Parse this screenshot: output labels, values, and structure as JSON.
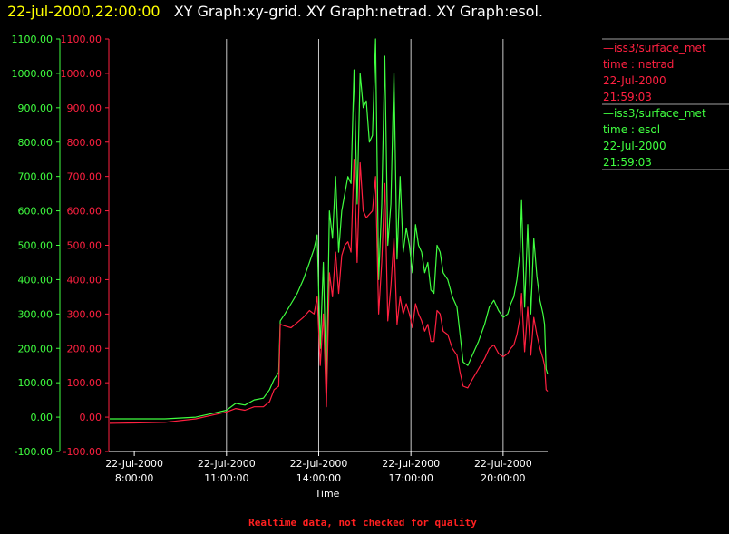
{
  "header": {
    "timestamp": "22-jul-2000,22:00:00",
    "graphs_text": "XY Graph:xy-grid.  XY Graph:netrad.  XY Graph:esol."
  },
  "footer": {
    "note": "Realtime data, not checked for quality"
  },
  "legend": [
    {
      "lines": [
        "—iss3/surface_met",
        "time : netrad",
        "22-Jul-2000",
        "21:59:03"
      ],
      "color": "#ff2040"
    },
    {
      "lines": [
        "—iss3/surface_met",
        "time : esol",
        "22-Jul-2000",
        "21:59:03"
      ],
      "color": "#40ff40"
    }
  ],
  "chart_data": {
    "type": "line",
    "title": "",
    "xlabel": "Time",
    "ylabel": "",
    "x_unit": "hours of day, 22-Jul-2000",
    "xlim": [
      7.2,
      21.45
    ],
    "ylim": [
      -100,
      1100
    ],
    "y_ticks": [
      "-100.00",
      "0.00",
      "100.00",
      "200.00",
      "300.00",
      "400.00",
      "500.00",
      "600.00",
      "700.00",
      "800.00",
      "900.00",
      "1000.00",
      "1100.00"
    ],
    "x_ticks": [
      {
        "x": 8,
        "date": "22-Jul-2000",
        "time": "8:00:00"
      },
      {
        "x": 11,
        "date": "22-Jul-2000",
        "time": "11:00:00"
      },
      {
        "x": 14,
        "date": "22-Jul-2000",
        "time": "14:00:00"
      },
      {
        "x": 17,
        "date": "22-Jul-2000",
        "time": "17:00:00"
      },
      {
        "x": 20,
        "date": "22-Jul-2000",
        "time": "20:00:00"
      }
    ],
    "vertical_grid": [
      11,
      14,
      17,
      20
    ],
    "series": [
      {
        "name": "esol",
        "color": "#40ff40",
        "points": [
          [
            7.2,
            -5
          ],
          [
            8.0,
            -5
          ],
          [
            9.0,
            -5
          ],
          [
            10.0,
            0
          ],
          [
            10.5,
            10
          ],
          [
            11.0,
            20
          ],
          [
            11.3,
            40
          ],
          [
            11.6,
            35
          ],
          [
            11.9,
            50
          ],
          [
            12.2,
            55
          ],
          [
            12.4,
            80
          ],
          [
            12.55,
            110
          ],
          [
            12.7,
            130
          ],
          [
            12.75,
            280
          ],
          [
            12.9,
            300
          ],
          [
            13.1,
            330
          ],
          [
            13.3,
            360
          ],
          [
            13.5,
            400
          ],
          [
            13.7,
            450
          ],
          [
            13.85,
            490
          ],
          [
            13.95,
            530
          ],
          [
            14.05,
            200
          ],
          [
            14.15,
            450
          ],
          [
            14.25,
            70
          ],
          [
            14.35,
            600
          ],
          [
            14.45,
            520
          ],
          [
            14.55,
            700
          ],
          [
            14.65,
            480
          ],
          [
            14.75,
            600
          ],
          [
            14.85,
            650
          ],
          [
            14.95,
            700
          ],
          [
            15.05,
            680
          ],
          [
            15.15,
            1010
          ],
          [
            15.25,
            620
          ],
          [
            15.35,
            1000
          ],
          [
            15.45,
            900
          ],
          [
            15.55,
            920
          ],
          [
            15.65,
            800
          ],
          [
            15.75,
            820
          ],
          [
            15.85,
            1100
          ],
          [
            15.95,
            400
          ],
          [
            16.05,
            620
          ],
          [
            16.15,
            1050
          ],
          [
            16.25,
            500
          ],
          [
            16.35,
            620
          ],
          [
            16.45,
            1000
          ],
          [
            16.55,
            460
          ],
          [
            16.65,
            700
          ],
          [
            16.75,
            480
          ],
          [
            16.85,
            550
          ],
          [
            16.95,
            500
          ],
          [
            17.05,
            420
          ],
          [
            17.15,
            560
          ],
          [
            17.25,
            500
          ],
          [
            17.35,
            480
          ],
          [
            17.45,
            420
          ],
          [
            17.55,
            450
          ],
          [
            17.65,
            370
          ],
          [
            17.75,
            360
          ],
          [
            17.85,
            500
          ],
          [
            17.95,
            480
          ],
          [
            18.05,
            420
          ],
          [
            18.2,
            400
          ],
          [
            18.35,
            350
          ],
          [
            18.5,
            320
          ],
          [
            18.6,
            240
          ],
          [
            18.7,
            160
          ],
          [
            18.85,
            150
          ],
          [
            19.0,
            180
          ],
          [
            19.2,
            220
          ],
          [
            19.4,
            270
          ],
          [
            19.55,
            320
          ],
          [
            19.7,
            340
          ],
          [
            19.85,
            310
          ],
          [
            20.0,
            290
          ],
          [
            20.15,
            300
          ],
          [
            20.25,
            330
          ],
          [
            20.35,
            350
          ],
          [
            20.45,
            400
          ],
          [
            20.55,
            480
          ],
          [
            20.6,
            630
          ],
          [
            20.7,
            320
          ],
          [
            20.8,
            560
          ],
          [
            20.9,
            300
          ],
          [
            21.0,
            520
          ],
          [
            21.1,
            410
          ],
          [
            21.2,
            340
          ],
          [
            21.3,
            300
          ],
          [
            21.35,
            270
          ],
          [
            21.4,
            140
          ],
          [
            21.45,
            125
          ]
        ]
      },
      {
        "name": "netrad",
        "color": "#ff2040",
        "points": [
          [
            7.2,
            -18
          ],
          [
            8.0,
            -17
          ],
          [
            9.0,
            -15
          ],
          [
            10.0,
            -5
          ],
          [
            10.5,
            5
          ],
          [
            11.0,
            15
          ],
          [
            11.3,
            25
          ],
          [
            11.6,
            20
          ],
          [
            11.9,
            30
          ],
          [
            12.2,
            30
          ],
          [
            12.4,
            45
          ],
          [
            12.55,
            80
          ],
          [
            12.7,
            90
          ],
          [
            12.75,
            270
          ],
          [
            12.9,
            265
          ],
          [
            13.1,
            260
          ],
          [
            13.3,
            275
          ],
          [
            13.5,
            290
          ],
          [
            13.7,
            310
          ],
          [
            13.85,
            300
          ],
          [
            13.95,
            350
          ],
          [
            14.05,
            150
          ],
          [
            14.15,
            300
          ],
          [
            14.25,
            30
          ],
          [
            14.35,
            420
          ],
          [
            14.45,
            350
          ],
          [
            14.55,
            480
          ],
          [
            14.65,
            360
          ],
          [
            14.75,
            470
          ],
          [
            14.85,
            500
          ],
          [
            14.95,
            510
          ],
          [
            15.05,
            480
          ],
          [
            15.15,
            750
          ],
          [
            15.25,
            450
          ],
          [
            15.35,
            740
          ],
          [
            15.45,
            600
          ],
          [
            15.55,
            580
          ],
          [
            15.65,
            590
          ],
          [
            15.75,
            600
          ],
          [
            15.85,
            700
          ],
          [
            15.95,
            300
          ],
          [
            16.05,
            450
          ],
          [
            16.15,
            680
          ],
          [
            16.25,
            280
          ],
          [
            16.35,
            380
          ],
          [
            16.45,
            520
          ],
          [
            16.55,
            270
          ],
          [
            16.65,
            350
          ],
          [
            16.75,
            300
          ],
          [
            16.85,
            330
          ],
          [
            16.95,
            300
          ],
          [
            17.05,
            260
          ],
          [
            17.15,
            330
          ],
          [
            17.25,
            300
          ],
          [
            17.35,
            280
          ],
          [
            17.45,
            250
          ],
          [
            17.55,
            270
          ],
          [
            17.65,
            220
          ],
          [
            17.75,
            220
          ],
          [
            17.85,
            310
          ],
          [
            17.95,
            300
          ],
          [
            18.05,
            250
          ],
          [
            18.2,
            240
          ],
          [
            18.35,
            200
          ],
          [
            18.5,
            180
          ],
          [
            18.6,
            130
          ],
          [
            18.7,
            90
          ],
          [
            18.85,
            85
          ],
          [
            19.0,
            110
          ],
          [
            19.2,
            140
          ],
          [
            19.4,
            170
          ],
          [
            19.55,
            200
          ],
          [
            19.7,
            210
          ],
          [
            19.85,
            185
          ],
          [
            20.0,
            175
          ],
          [
            20.15,
            185
          ],
          [
            20.25,
            200
          ],
          [
            20.35,
            210
          ],
          [
            20.45,
            240
          ],
          [
            20.55,
            290
          ],
          [
            20.6,
            360
          ],
          [
            20.7,
            190
          ],
          [
            20.8,
            320
          ],
          [
            20.9,
            180
          ],
          [
            21.0,
            290
          ],
          [
            21.1,
            240
          ],
          [
            21.2,
            200
          ],
          [
            21.3,
            170
          ],
          [
            21.35,
            150
          ],
          [
            21.4,
            80
          ],
          [
            21.45,
            75
          ]
        ]
      }
    ]
  }
}
